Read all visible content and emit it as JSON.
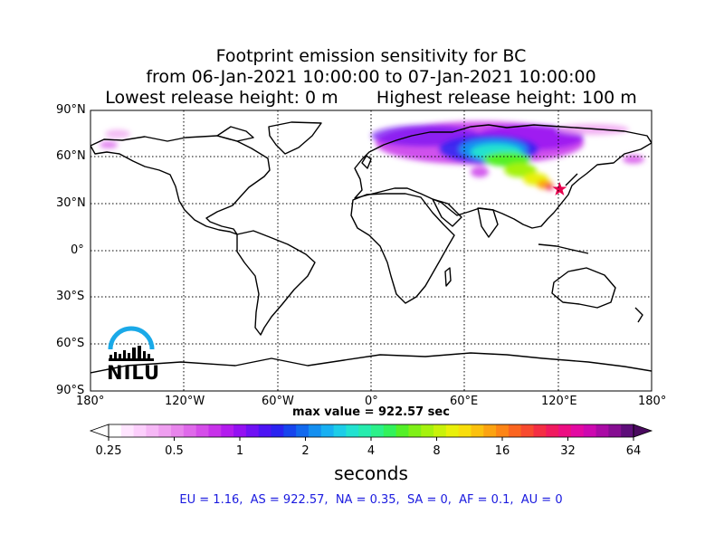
{
  "title_lines": [
    "Footprint emission sensitivity for BC",
    "from 06-Jan-2021 10:00:00 to 07-Jan-2021 10:00:00",
    "Lowest release height: 0 m       Highest release height: 100 m"
  ],
  "map": {
    "lat_ticks": [
      "90°N",
      "60°N",
      "30°N",
      "0°",
      "30°S",
      "60°S",
      "90°S"
    ],
    "lon_ticks": [
      "180°",
      "120°W",
      "60°W",
      "0°",
      "60°E",
      "120°E",
      "180°"
    ],
    "gridlines": "dotted",
    "release_marker": {
      "lon": 121.0,
      "lat": 39.5,
      "symbol": "star",
      "color": "#e8004e"
    },
    "logo_text": "NILU",
    "logo_color": "#1aa9e8"
  },
  "max_value_text": "max value = 922.57 sec",
  "colorbar": {
    "tick_labels": [
      "0.25",
      "0.5",
      "1",
      "2",
      "4",
      "8",
      "16",
      "32",
      "64"
    ],
    "colors": [
      "#ffffff",
      "#ffe5ff",
      "#fccffc",
      "#f6b8f6",
      "#ef9ff0",
      "#e885ec",
      "#df69ea",
      "#d54de9",
      "#c832ea",
      "#b31bee",
      "#9411f2",
      "#7011f4",
      "#4d14f4",
      "#2a23f1",
      "#1745ee",
      "#1269ee",
      "#148ff0",
      "#18b0f2",
      "#1dcde8",
      "#22e2d0",
      "#26ecae",
      "#2bf18a",
      "#32f25b",
      "#53f028",
      "#7ff017",
      "#a5f20e",
      "#c9f20a",
      "#e9f00a",
      "#f8de0c",
      "#fbc10e",
      "#fca311",
      "#fd8516",
      "#fb6520",
      "#f84a2f",
      "#f42e44",
      "#f01a5f",
      "#ec0e82",
      "#e309a2",
      "#cd09b0",
      "#aa0ba5",
      "#860e92",
      "#5e0e7a"
    ],
    "under_color": "#ffffff",
    "over_color": "#4a0a5f",
    "units": "seconds"
  },
  "regions_text": "EU = 1.16,  AS = 922.57,  NA = 0.35,  SA = 0,  AF = 0.1,  AU = 0"
}
